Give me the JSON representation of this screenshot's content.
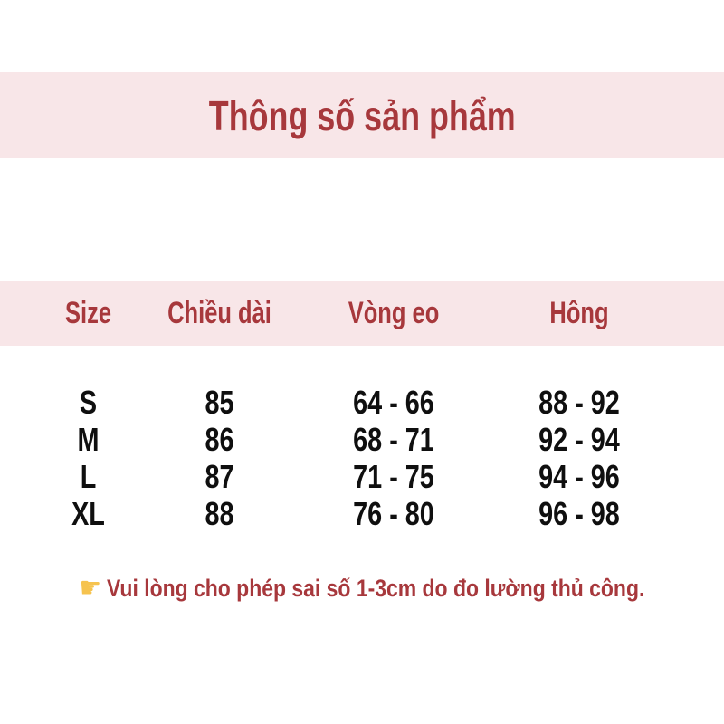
{
  "banner": {
    "title": "Thông số sản phẩm",
    "bg_color": "#F8E6E8",
    "text_color": "#A7383C"
  },
  "table": {
    "headers": [
      "Size",
      "Chiều dài",
      "Vòng eo",
      "Hông"
    ],
    "rows": [
      {
        "size": "S",
        "length": "85",
        "waist": "64 - 66",
        "hips": "88 - 92"
      },
      {
        "size": "M",
        "length": "86",
        "waist": "68 - 71",
        "hips": "92 - 94"
      },
      {
        "size": "L",
        "length": "87",
        "waist": "71 - 75",
        "hips": "94 - 96"
      },
      {
        "size": "XL",
        "length": "88",
        "waist": "76 - 80",
        "hips": "96 - 98"
      }
    ]
  },
  "note": {
    "icon": "pointing-hand-right",
    "icon_glyph": "☛",
    "icon_color": "#F6C34F",
    "text": "Vui lòng cho phép sai số 1-3cm do đo lường thủ công."
  }
}
